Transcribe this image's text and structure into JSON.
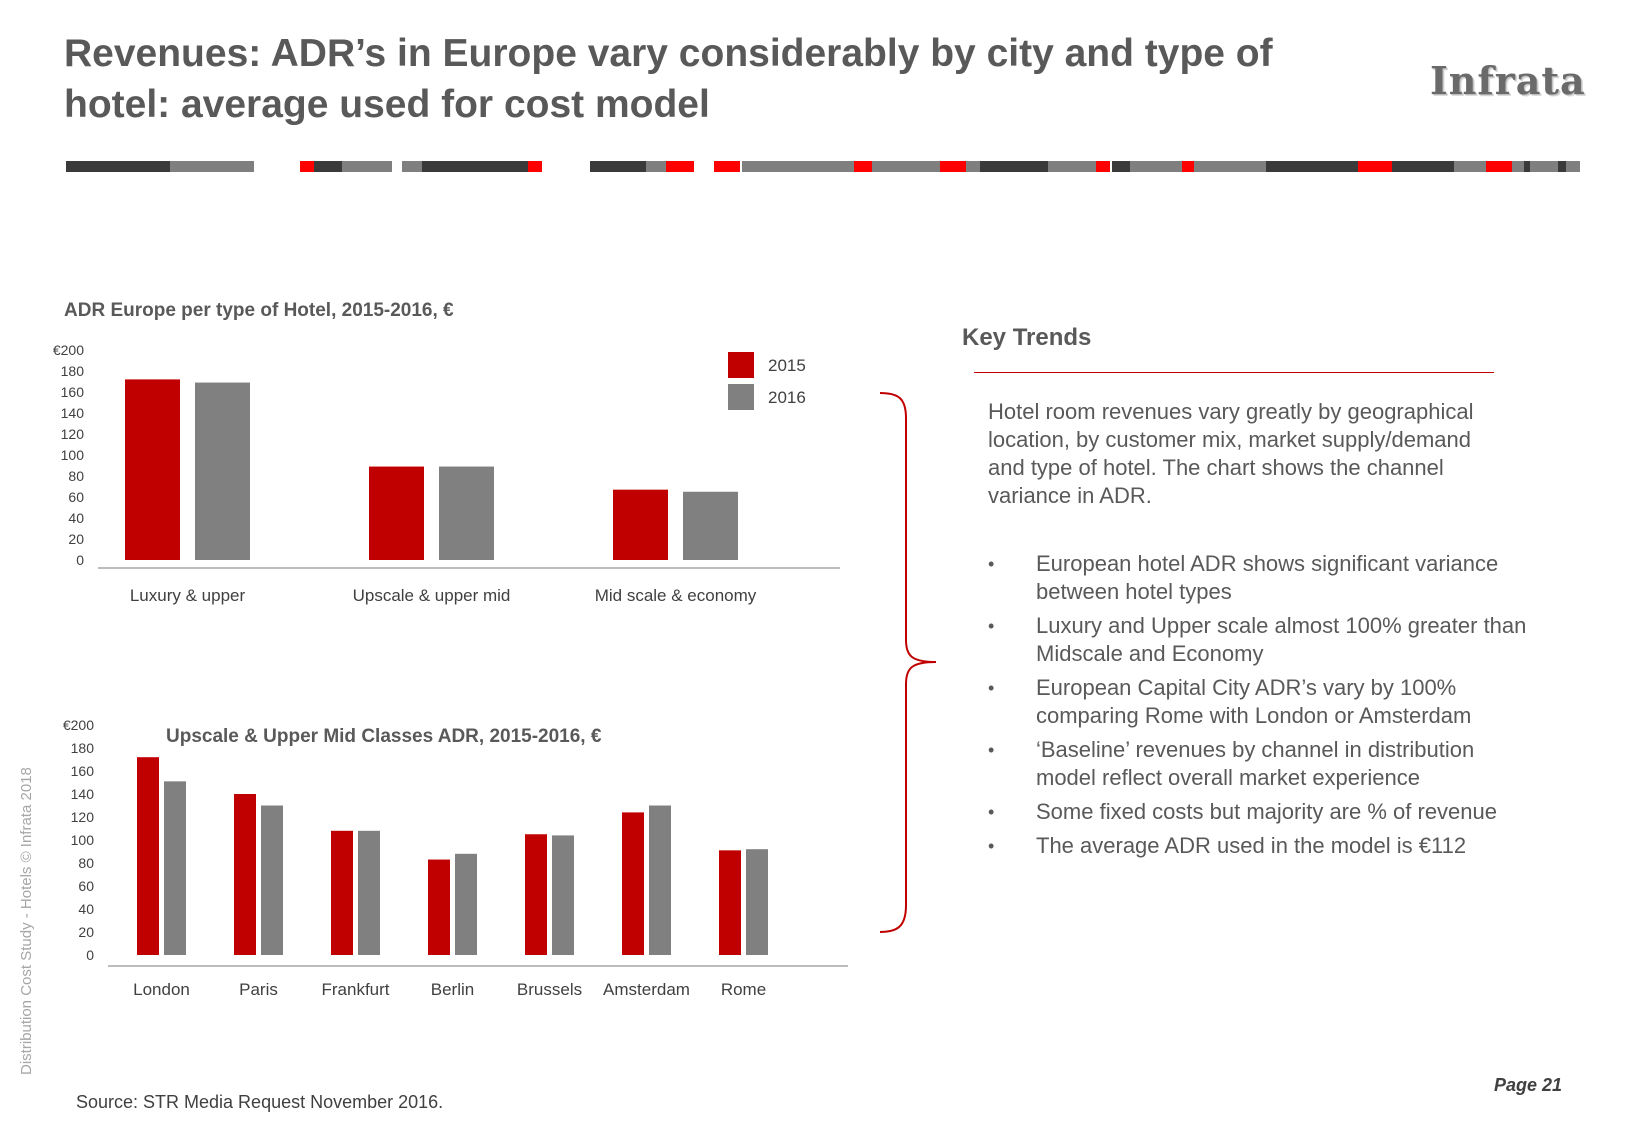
{
  "slide": {
    "title": "Revenues: ADR’s in Europe vary considerably by city and type of hotel: average used for cost model",
    "logo_text": "Infrata",
    "vertical_text": "Distribution Cost Study - Hotels © Infrata 2018",
    "source": "Source: STR Media Request November 2016.",
    "page": "Page 21"
  },
  "colors": {
    "accent_red": "#c00000",
    "bright_red": "#ff0000",
    "dark_grey": "#3a3a3a",
    "mid_grey": "#7f7f7f",
    "series_2015": "#c00000",
    "series_2016": "#808080",
    "bracket": "#c00000"
  },
  "key_trends": {
    "title": "Key Trends",
    "intro": "Hotel room revenues vary greatly by geographical location, by customer mix, market supply/demand and type of hotel. The chart shows the channel variance in ADR.",
    "bullets": [
      "European hotel ADR shows significant variance between hotel types",
      "Luxury and Upper scale almost 100% greater than Midscale and Economy",
      "European Capital City ADR’s vary by 100% comparing Rome with London or Amsterdam",
      "‘Baseline’ revenues by channel in distribution model reflect overall market experience",
      "Some fixed costs but majority are % of revenue",
      "The average ADR used in the model is €112"
    ]
  },
  "chart_data": [
    {
      "type": "bar",
      "title": "ADR Europe per type of Hotel, 2015-2016, €",
      "categories": [
        "Luxury & upper",
        "Upscale & upper mid",
        "Mid scale & economy"
      ],
      "series": [
        {
          "name": "2015",
          "values": [
            172,
            89,
            67
          ]
        },
        {
          "name": "2016",
          "values": [
            169,
            89,
            65
          ]
        }
      ],
      "ylim": [
        0,
        200
      ],
      "yticks": [
        "€200",
        "180",
        "160",
        "140",
        "120",
        "100",
        "80",
        "60",
        "40",
        "20",
        "0"
      ],
      "legend": "top-right",
      "grid": false
    },
    {
      "type": "bar",
      "title": "Upscale & Upper Mid Classes ADR, 2015-2016, €",
      "categories": [
        "London",
        "Paris",
        "Frankfurt",
        "Berlin",
        "Brussels",
        "Amsterdam",
        "Rome"
      ],
      "series": [
        {
          "name": "2015",
          "values": [
            172,
            140,
            108,
            83,
            105,
            124,
            91
          ]
        },
        {
          "name": "2016",
          "values": [
            151,
            130,
            108,
            88,
            104,
            130,
            92
          ]
        }
      ],
      "ylim": [
        0,
        200
      ],
      "yticks": [
        "€200",
        "180",
        "160",
        "140",
        "120",
        "100",
        "80",
        "60",
        "40",
        "20",
        "0"
      ],
      "legend": "none",
      "grid": false
    }
  ]
}
